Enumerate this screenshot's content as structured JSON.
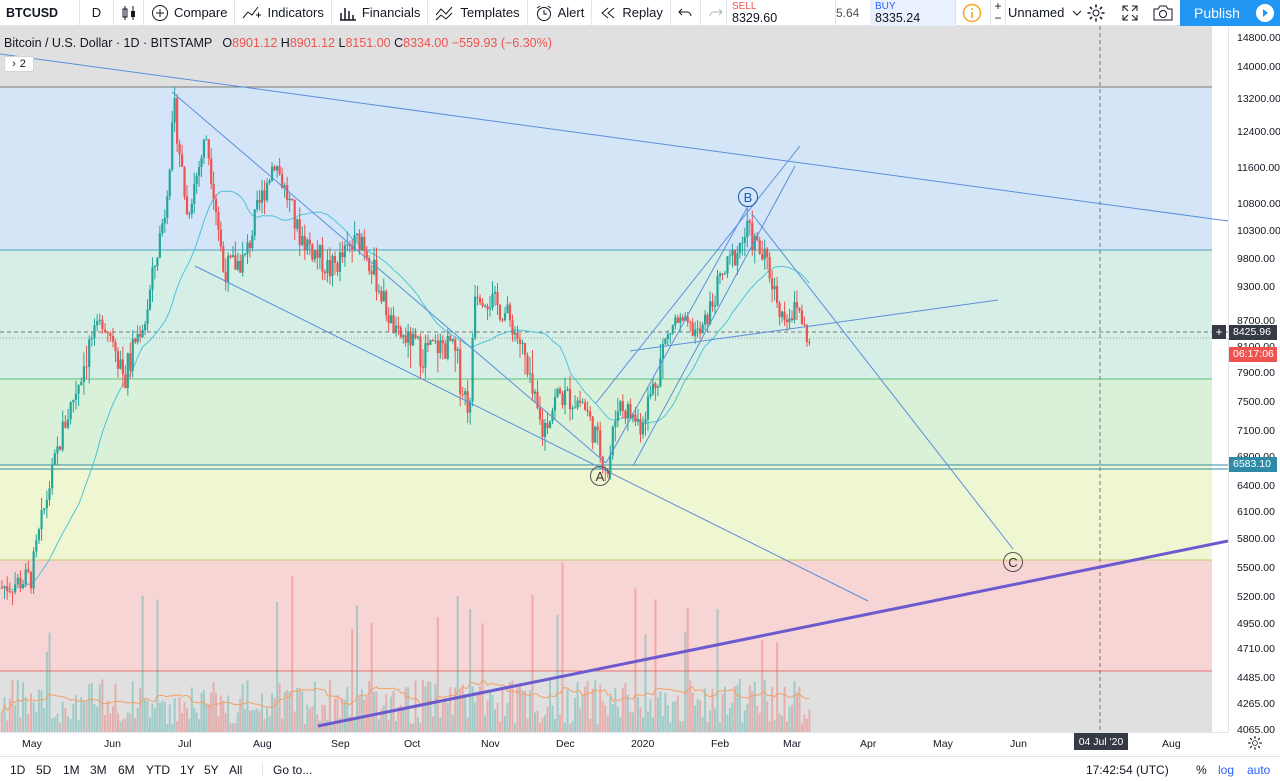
{
  "toolbar": {
    "symbol": "BTCUSD",
    "interval": "D",
    "compare": "Compare",
    "indicators": "Indicators",
    "financials": "Financials",
    "templates": "Templates",
    "alert": "Alert",
    "replay": "Replay",
    "sell_label": "SELL",
    "sell_price": "8329.60",
    "spread": "5.64",
    "buy_label": "BUY",
    "buy_price": "8335.24",
    "layout_name": "Unnamed",
    "publish": "Publish"
  },
  "legend": {
    "title": "Bitcoin / U.S. Dollar",
    "interval": "1D",
    "exchange": "BITSTAMP",
    "open_key": "O",
    "open": "8901.12",
    "high_key": "H",
    "high": "8901.12",
    "low_key": "L",
    "low": "8151.00",
    "close_key": "C",
    "close": "8334.00",
    "change": "−559.93 (−6.30%)",
    "collapsed_count": "2"
  },
  "chart_data": {
    "type": "candlestick",
    "symbol": "BTCUSD",
    "exchange": "BITSTAMP",
    "interval": "1D",
    "ylim": [
      4000,
      14900
    ],
    "y_ticks": [
      "14800.00",
      "14000.00",
      "13200.00",
      "12400.00",
      "11600.00",
      "10800.00",
      "10300.00",
      "9800.00",
      "9300.00",
      "8700.00",
      "8100.00",
      "7900.00",
      "7500.00",
      "7100.00",
      "6800.00",
      "6400.00",
      "6100.00",
      "5800.00",
      "5500.00",
      "5200.00",
      "4950.00",
      "4710.00",
      "4485.00",
      "4265.00",
      "4065.00"
    ],
    "x_ticks": [
      "May",
      "Jun",
      "Jul",
      "Aug",
      "Sep",
      "Oct",
      "Nov",
      "Dec",
      "2020",
      "Feb",
      "Mar",
      "Apr",
      "May",
      "Jun",
      "Jul",
      "Aug"
    ],
    "last_price": "8425.96",
    "countdown": "06:17:06",
    "horizontal_level": "6583.10",
    "crosshair_time": "04 Jul '20",
    "close_path": [
      [
        "2019-04-20",
        5300
      ],
      [
        "2019-05-01",
        5400
      ],
      [
        "2019-05-12",
        7000
      ],
      [
        "2019-05-20",
        7900
      ],
      [
        "2019-05-28",
        8700
      ],
      [
        "2019-06-06",
        7800
      ],
      [
        "2019-06-14",
        8700
      ],
      [
        "2019-06-22",
        10700
      ],
      [
        "2019-06-26",
        12900
      ],
      [
        "2019-07-01",
        10600
      ],
      [
        "2019-07-09",
        12300
      ],
      [
        "2019-07-16",
        9600
      ],
      [
        "2019-07-25",
        9800
      ],
      [
        "2019-08-06",
        11800
      ],
      [
        "2019-08-15",
        10300
      ],
      [
        "2019-08-28",
        9600
      ],
      [
        "2019-09-10",
        10200
      ],
      [
        "2019-09-24",
        8400
      ],
      [
        "2019-10-06",
        8100
      ],
      [
        "2019-10-16",
        8200
      ],
      [
        "2019-10-24",
        7400
      ],
      [
        "2019-10-26",
        9300
      ],
      [
        "2019-11-08",
        8800
      ],
      [
        "2019-11-22",
        7100
      ],
      [
        "2019-11-28",
        7600
      ],
      [
        "2019-12-08",
        7500
      ],
      [
        "2019-12-18",
        6600
      ],
      [
        "2019-12-22",
        7500
      ],
      [
        "2019-12-31",
        7200
      ],
      [
        "2020-01-08",
        8000
      ],
      [
        "2020-01-14",
        8700
      ],
      [
        "2020-01-24",
        8400
      ],
      [
        "2020-02-01",
        9400
      ],
      [
        "2020-02-12",
        10300
      ],
      [
        "2020-02-20",
        9700
      ],
      [
        "2020-02-26",
        8800
      ],
      [
        "2020-03-04",
        8900
      ],
      [
        "2020-03-08",
        8150
      ]
    ],
    "annotations": {
      "waves": [
        "A",
        "B",
        "C"
      ],
      "fib_levels": [
        13300,
        9800,
        7800,
        6580,
        5500,
        4480
      ]
    },
    "volume_visible": true,
    "moving_averages": 2
  },
  "bottombar": {
    "ranges": [
      "1D",
      "5D",
      "1M",
      "3M",
      "6M",
      "YTD",
      "1Y",
      "5Y",
      "All"
    ],
    "goto": "Go to...",
    "clock": "17:42:54 (UTC)",
    "percent": "%",
    "log": "log",
    "auto": "auto"
  },
  "colors": {
    "up": "#26a69a",
    "down": "#ef5350",
    "trendline": "#5b8fd9",
    "support": "#6a5acd",
    "ma_cyan": "#4fc3d9",
    "ma_orange": "#f4a064",
    "publish": "#2196f3"
  }
}
